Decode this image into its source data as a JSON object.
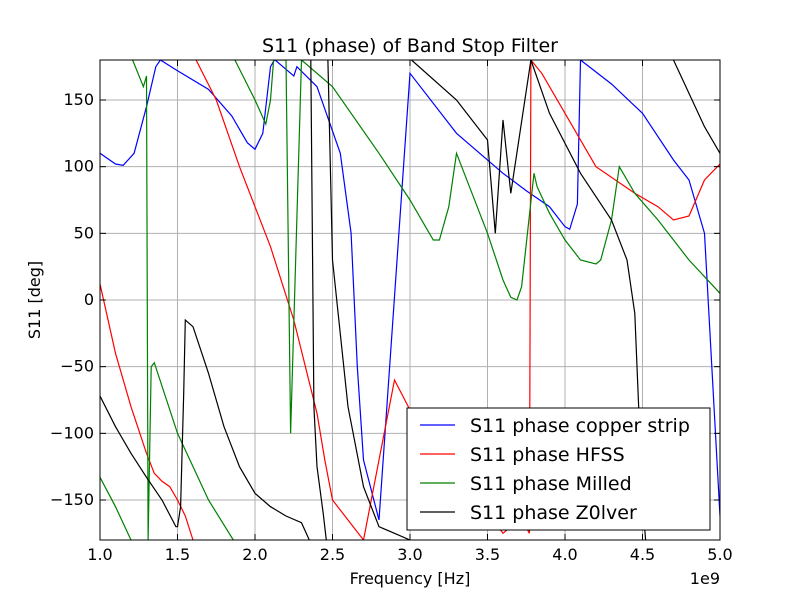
{
  "chart_data": {
    "type": "line",
    "title": "S11 (phase) of Band Stop Filter",
    "xlabel": "Frequency [Hz]",
    "ylabel": "S11 [deg]",
    "x_multiplier": "1e9",
    "xlim": [
      1.0,
      5.0
    ],
    "ylim": [
      180,
      -180
    ],
    "x_ticks": [
      "1.0",
      "1.5",
      "2.0",
      "2.5",
      "3.0",
      "3.5",
      "4.0",
      "4.5",
      "5.0"
    ],
    "y_ticks": [
      "−150",
      "−100",
      "−50",
      "0",
      "50",
      "100",
      "150"
    ],
    "grid": true,
    "legend_position": "lower-right",
    "series": [
      {
        "name": "S11 phase copper strip",
        "color": "#0000ff",
        "x": [
          1.0,
          1.1,
          1.15,
          1.22,
          1.3,
          1.36,
          1.39,
          1.5,
          1.7,
          1.85,
          1.95,
          2.0,
          2.05,
          2.1,
          2.125,
          2.13,
          2.2,
          2.25,
          2.27,
          2.4,
          2.55,
          2.62,
          2.66,
          2.7,
          2.8,
          3.0,
          3.3,
          3.6,
          3.75,
          3.9,
          4.0,
          4.03,
          4.08,
          4.1,
          4.3,
          4.5,
          4.7,
          4.8,
          4.9,
          5.0
        ],
        "values": [
          110,
          102,
          101,
          110,
          145,
          175,
          180,
          172,
          158,
          138,
          118,
          113,
          125,
          175,
          180,
          180,
          173,
          168,
          175,
          160,
          110,
          50,
          -50,
          -120,
          -165,
          170,
          125,
          95,
          82,
          70,
          55,
          53,
          72,
          180,
          162,
          140,
          105,
          90,
          50,
          -162
        ]
      },
      {
        "name": "S11 phase HFSS",
        "color": "#ff0000",
        "x": [
          1.0,
          1.1,
          1.2,
          1.3,
          1.35,
          1.4,
          1.45,
          1.5,
          1.55,
          1.6,
          1.62,
          1.75,
          1.9,
          2.1,
          2.25,
          2.4,
          2.45,
          2.5,
          2.7,
          2.9,
          3.1,
          3.3,
          3.45,
          3.5,
          3.6,
          3.65,
          3.7,
          3.77,
          3.78,
          3.85,
          4.0,
          4.2,
          4.45,
          4.6,
          4.7,
          4.8,
          4.9,
          5.0
        ],
        "values": [
          12,
          -40,
          -80,
          -115,
          -130,
          -136,
          -140,
          -150,
          -162,
          -180,
          180,
          150,
          100,
          40,
          -15,
          -85,
          -120,
          -150,
          -180,
          -60,
          -105,
          -140,
          -155,
          -160,
          -175,
          -170,
          -160,
          -175,
          180,
          170,
          140,
          100,
          80,
          70,
          60,
          63,
          90,
          102
        ]
      },
      {
        "name": "S11 phase Milled",
        "color": "#008000",
        "x": [
          1.0,
          1.1,
          1.2,
          1.21,
          1.28,
          1.3,
          1.31,
          1.33,
          1.35,
          1.5,
          1.7,
          1.86,
          1.87,
          2.0,
          2.07,
          2.1,
          2.12,
          2.2,
          2.23,
          2.3,
          2.5,
          2.8,
          3.0,
          3.1,
          3.15,
          3.19,
          3.25,
          3.3,
          3.5,
          3.6,
          3.65,
          3.69,
          3.72,
          3.8,
          3.82,
          3.9,
          4.0,
          4.1,
          4.2,
          4.23,
          4.3,
          4.35,
          4.45,
          4.6,
          4.8,
          5.0
        ],
        "values": [
          -133,
          -155,
          -180,
          180,
          160,
          168,
          -180,
          -50,
          -47,
          -100,
          -150,
          -180,
          180,
          150,
          132,
          150,
          180,
          180,
          -100,
          180,
          160,
          110,
          75,
          55,
          45,
          45,
          70,
          110,
          50,
          15,
          2,
          0,
          10,
          95,
          85,
          65,
          45,
          30,
          27,
          30,
          60,
          100,
          80,
          60,
          30,
          5
        ]
      },
      {
        "name": "S11 phase Z0lver",
        "color": "#000000",
        "x": [
          1.0,
          1.1,
          1.2,
          1.3,
          1.4,
          1.49,
          1.5,
          1.52,
          1.54,
          1.55,
          1.6,
          1.7,
          1.8,
          1.9,
          2.0,
          2.1,
          2.2,
          2.3,
          2.35,
          2.36,
          2.38,
          2.4,
          2.44,
          2.46,
          2.47,
          2.5,
          2.6,
          2.7,
          2.8,
          2.9,
          3.0,
          3.01,
          3.3,
          3.5,
          3.55,
          3.6,
          3.65,
          3.78,
          3.9,
          4.1,
          4.3,
          4.4,
          4.45,
          4.5,
          4.52,
          4.7,
          4.9,
          5.0
        ],
        "values": [
          -72,
          -95,
          -115,
          -133,
          -150,
          -170,
          -170,
          -155,
          -70,
          -15,
          -20,
          -55,
          -95,
          -125,
          -145,
          -155,
          -162,
          -167,
          -180,
          180,
          -80,
          -125,
          -160,
          -180,
          180,
          30,
          -80,
          -140,
          -170,
          -175,
          -180,
          180,
          150,
          120,
          50,
          135,
          80,
          180,
          140,
          95,
          60,
          30,
          -10,
          -150,
          -180,
          180,
          130,
          110
        ]
      }
    ]
  }
}
